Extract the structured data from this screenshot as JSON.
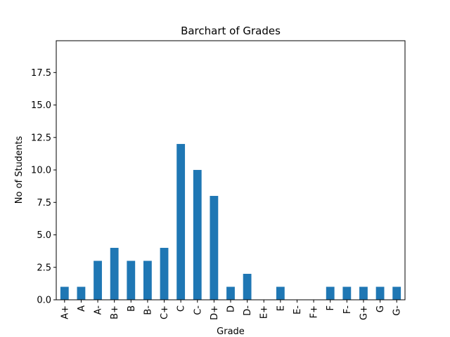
{
  "chart_data": {
    "type": "bar",
    "title": "Barchart of Grades",
    "xlabel": "Grade",
    "ylabel": "No of Students",
    "categories": [
      "A+",
      "A",
      "A-",
      "B+",
      "B",
      "B-",
      "C+",
      "C",
      "C-",
      "D+",
      "D",
      "D-",
      "E+",
      "E",
      "E-",
      "F+",
      "F",
      "F-",
      "G+",
      "G",
      "G-"
    ],
    "values": [
      1,
      1,
      3,
      4,
      3,
      3,
      4,
      12,
      10,
      8,
      1,
      2,
      0,
      1,
      0,
      0,
      1,
      1,
      1,
      1,
      1
    ],
    "ylim": [
      0,
      19.95
    ],
    "yticks": [
      0.0,
      2.5,
      5.0,
      7.5,
      10.0,
      12.5,
      15.0,
      17.5
    ],
    "ytick_labels": [
      "0.0",
      "2.5",
      "5.0",
      "7.5",
      "10.0",
      "12.5",
      "15.0",
      "17.5"
    ],
    "bar_color": "#1f77b4",
    "grid": false,
    "legend": "none"
  }
}
